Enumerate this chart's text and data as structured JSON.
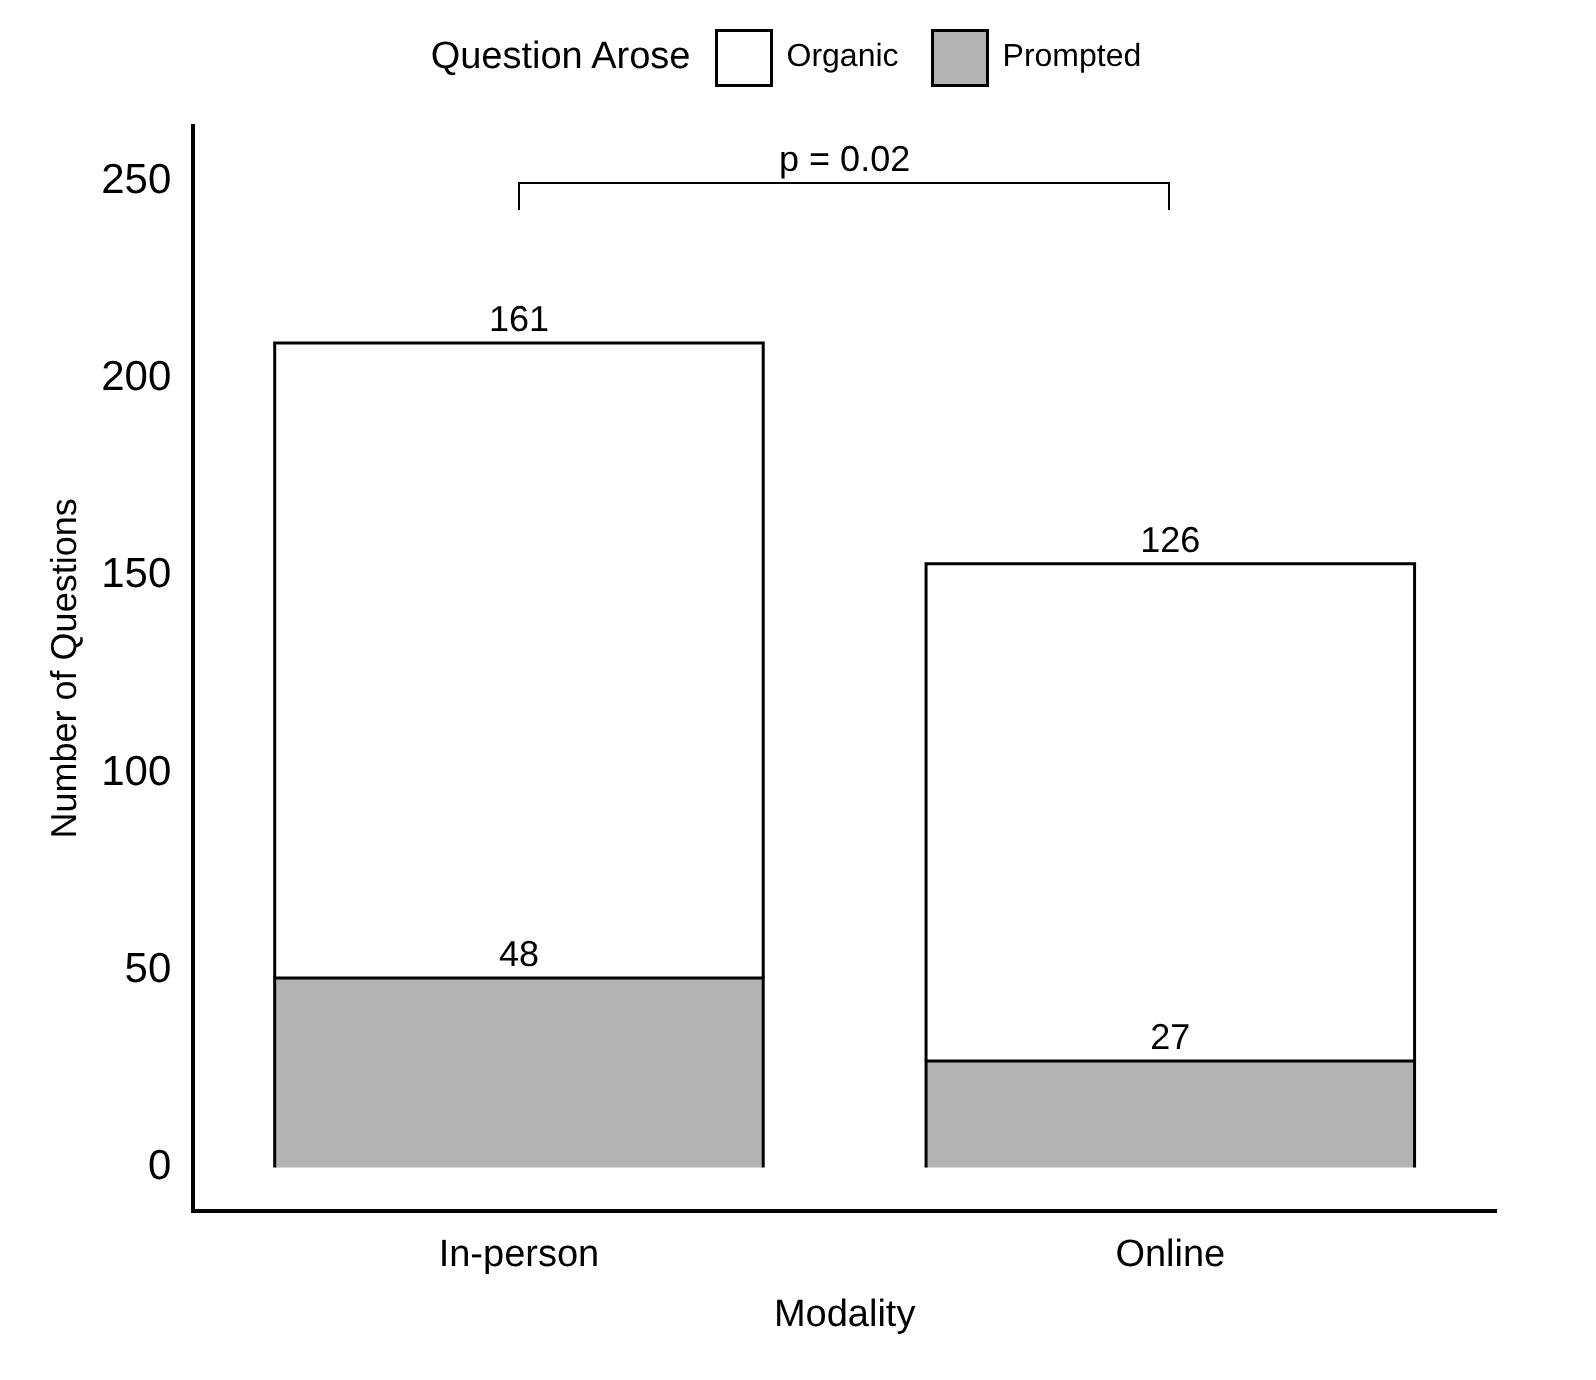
{
  "chart_data": {
    "type": "bar",
    "stacked": true,
    "xlabel": "Modality",
    "ylabel": "Number of Questions",
    "legend_title": "Question Arose",
    "legend": "top",
    "categories": [
      "In-person",
      "Online"
    ],
    "series": [
      {
        "name": "Prompted",
        "color": "#b3b3b3",
        "values": [
          48,
          27
        ]
      },
      {
        "name": "Organic",
        "color": "#ffffff",
        "values": [
          161,
          126
        ]
      }
    ],
    "ylim": [
      -11,
      264
    ],
    "yticks": [
      0,
      50,
      100,
      150,
      200,
      250
    ],
    "grid": false,
    "data_labels": true,
    "annotations": [
      "p = 0.02"
    ]
  }
}
